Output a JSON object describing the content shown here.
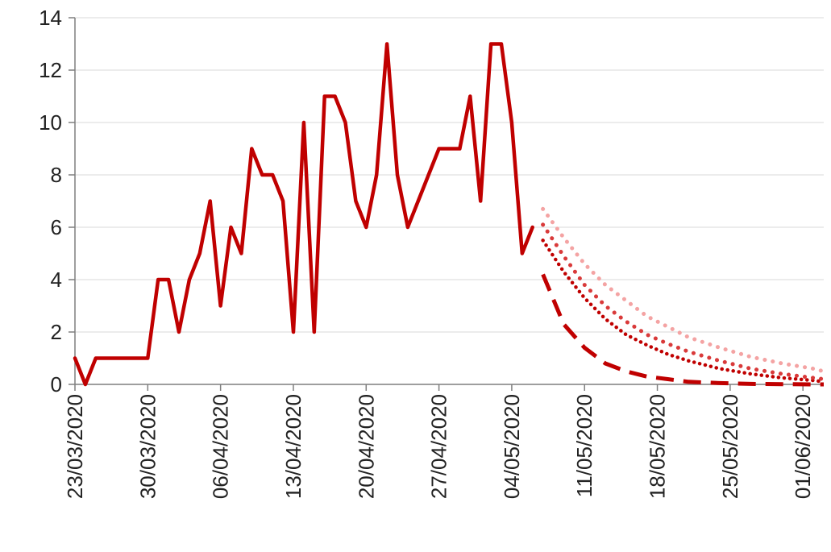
{
  "chart_data": {
    "type": "line",
    "title": "",
    "xlabel": "",
    "ylabel": "",
    "ylim": [
      0,
      14
    ],
    "yticks": [
      0,
      2,
      4,
      6,
      8,
      10,
      12,
      14
    ],
    "xlim": [
      "2020-03-23",
      "2020-06-03"
    ],
    "xtick_labels": [
      "23/03/2020",
      "30/03/2020",
      "06/04/2020",
      "13/04/2020",
      "20/04/2020",
      "27/04/2020",
      "04/05/2020",
      "11/05/2020",
      "18/05/2020",
      "25/05/2020",
      "01/06/2020"
    ],
    "xtick_dates": [
      "2020-03-23",
      "2020-03-30",
      "2020-04-06",
      "2020-04-13",
      "2020-04-20",
      "2020-04-27",
      "2020-05-04",
      "2020-05-11",
      "2020-05-18",
      "2020-05-25",
      "2020-06-01"
    ],
    "grid": "horizontal",
    "legend": "none",
    "series": [
      {
        "style": "solid",
        "color": "#c00000",
        "x": [
          "2020-03-23",
          "2020-03-24",
          "2020-03-25",
          "2020-03-26",
          "2020-03-27",
          "2020-03-28",
          "2020-03-29",
          "2020-03-30",
          "2020-03-31",
          "2020-04-01",
          "2020-04-02",
          "2020-04-03",
          "2020-04-04",
          "2020-04-05",
          "2020-04-06",
          "2020-04-07",
          "2020-04-08",
          "2020-04-09",
          "2020-04-10",
          "2020-04-11",
          "2020-04-12",
          "2020-04-13",
          "2020-04-14",
          "2020-04-15",
          "2020-04-16",
          "2020-04-17",
          "2020-04-18",
          "2020-04-19",
          "2020-04-20",
          "2020-04-21",
          "2020-04-22",
          "2020-04-23",
          "2020-04-24",
          "2020-04-25",
          "2020-04-26",
          "2020-04-27",
          "2020-04-28",
          "2020-04-29",
          "2020-04-30",
          "2020-05-01",
          "2020-05-02",
          "2020-05-03",
          "2020-05-04",
          "2020-05-05",
          "2020-05-06"
        ],
        "y": [
          1,
          0,
          1,
          1,
          1,
          1,
          1,
          1,
          4,
          4,
          2,
          4,
          5,
          7,
          3,
          6,
          5,
          9,
          8,
          8,
          7,
          2,
          10,
          2,
          11,
          11,
          10,
          7,
          6,
          8,
          13,
          8,
          6,
          7,
          8,
          9,
          9,
          9,
          11,
          7,
          13,
          13,
          10,
          5,
          6
        ]
      },
      {
        "style": "dashed",
        "color": "#c00000",
        "x": [
          "2020-05-07",
          "2020-05-09",
          "2020-05-11",
          "2020-05-13",
          "2020-05-15",
          "2020-05-17",
          "2020-05-19",
          "2020-05-21",
          "2020-05-24",
          "2020-05-27",
          "2020-05-30",
          "2020-06-02",
          "2020-06-03"
        ],
        "y": [
          4.2,
          2.3,
          1.4,
          0.8,
          0.5,
          0.3,
          0.2,
          0.1,
          0.05,
          0.02,
          0.01,
          0.0,
          0.0
        ]
      },
      {
        "style": "dotted-dense",
        "color": "#c00000",
        "x": [
          "2020-05-07",
          "2020-05-09",
          "2020-05-11",
          "2020-05-13",
          "2020-05-15",
          "2020-05-17",
          "2020-05-19",
          "2020-05-21",
          "2020-05-24",
          "2020-05-27",
          "2020-05-30",
          "2020-06-02",
          "2020-06-03"
        ],
        "y": [
          5.5,
          4.3,
          3.3,
          2.5,
          1.9,
          1.5,
          1.15,
          0.9,
          0.6,
          0.4,
          0.25,
          0.15,
          0.1
        ]
      },
      {
        "style": "dotted",
        "color": "#d93a3a",
        "x": [
          "2020-05-07",
          "2020-05-09",
          "2020-05-11",
          "2020-05-13",
          "2020-05-15",
          "2020-05-17",
          "2020-05-19",
          "2020-05-21",
          "2020-05-24",
          "2020-05-27",
          "2020-05-30",
          "2020-06-02",
          "2020-06-03"
        ],
        "y": [
          6.1,
          4.9,
          3.8,
          3.0,
          2.4,
          1.9,
          1.55,
          1.25,
          0.9,
          0.6,
          0.4,
          0.25,
          0.2
        ]
      },
      {
        "style": "dotted",
        "color": "#f4a3a3",
        "x": [
          "2020-05-07",
          "2020-05-09",
          "2020-05-11",
          "2020-05-13",
          "2020-05-15",
          "2020-05-17",
          "2020-05-19",
          "2020-05-21",
          "2020-05-24",
          "2020-05-27",
          "2020-05-30",
          "2020-06-02",
          "2020-06-03"
        ],
        "y": [
          6.7,
          5.6,
          4.6,
          3.8,
          3.2,
          2.6,
          2.2,
          1.8,
          1.4,
          1.05,
          0.8,
          0.6,
          0.5
        ]
      }
    ]
  }
}
